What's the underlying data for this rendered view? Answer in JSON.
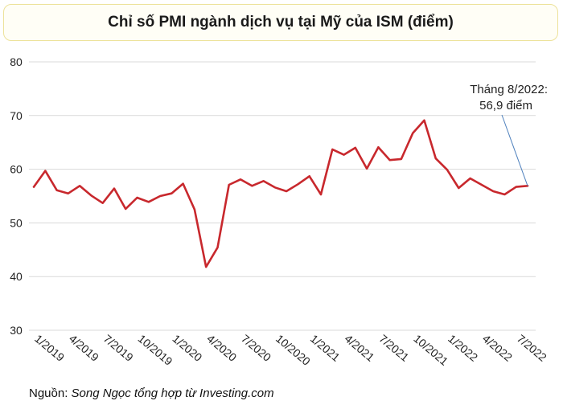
{
  "chart_data": {
    "type": "line",
    "title": "Chỉ số PMI ngành dịch vụ tại Mỹ của ISM (điểm)",
    "ylim": [
      30,
      80
    ],
    "yticks": [
      30,
      40,
      50,
      60,
      70,
      80
    ],
    "xtick_labels": [
      "1/2019",
      "4/2019",
      "7/2019",
      "10/2019",
      "1/2020",
      "4/2020",
      "7/2020",
      "10/2020",
      "1/2021",
      "4/2021",
      "7/2021",
      "10/2021",
      "1/2022",
      "4/2022",
      "7/2022"
    ],
    "grid": "horizontal",
    "line_color": "#c8282d",
    "series": [
      {
        "x": [
          "1/2019",
          "2/2019",
          "3/2019",
          "4/2019",
          "5/2019",
          "6/2019",
          "7/2019",
          "8/2019",
          "9/2019",
          "10/2019",
          "11/2019",
          "12/2019",
          "1/2020",
          "2/2020",
          "3/2020",
          "4/2020",
          "5/2020",
          "6/2020",
          "7/2020",
          "8/2020",
          "9/2020",
          "10/2020",
          "11/2020",
          "12/2020",
          "1/2021",
          "2/2021",
          "3/2021",
          "4/2021",
          "5/2021",
          "6/2021",
          "7/2021",
          "8/2021",
          "9/2021",
          "10/2021",
          "11/2021",
          "12/2021",
          "1/2022",
          "2/2022",
          "3/2022",
          "4/2022",
          "5/2022",
          "6/2022",
          "7/2022",
          "8/2022"
        ],
        "values": [
          56.7,
          59.7,
          56.1,
          55.5,
          56.9,
          55.1,
          53.7,
          56.4,
          52.6,
          54.7,
          53.9,
          55.0,
          55.5,
          57.3,
          52.5,
          41.8,
          45.4,
          57.1,
          58.1,
          56.9,
          57.8,
          56.6,
          55.9,
          57.2,
          58.7,
          55.3,
          63.7,
          62.7,
          64.0,
          60.1,
          64.1,
          61.7,
          61.9,
          66.7,
          69.1,
          62.0,
          59.9,
          56.5,
          58.3,
          57.1,
          55.9,
          55.3,
          56.7,
          56.9
        ]
      }
    ],
    "annotation": {
      "line1": "Tháng 8/2022:",
      "line2": "56,9 điểm",
      "target_index": 43
    }
  },
  "source": {
    "label": "Nguồn:",
    "value": "Song Ngọc tổng hợp từ Investing.com"
  }
}
